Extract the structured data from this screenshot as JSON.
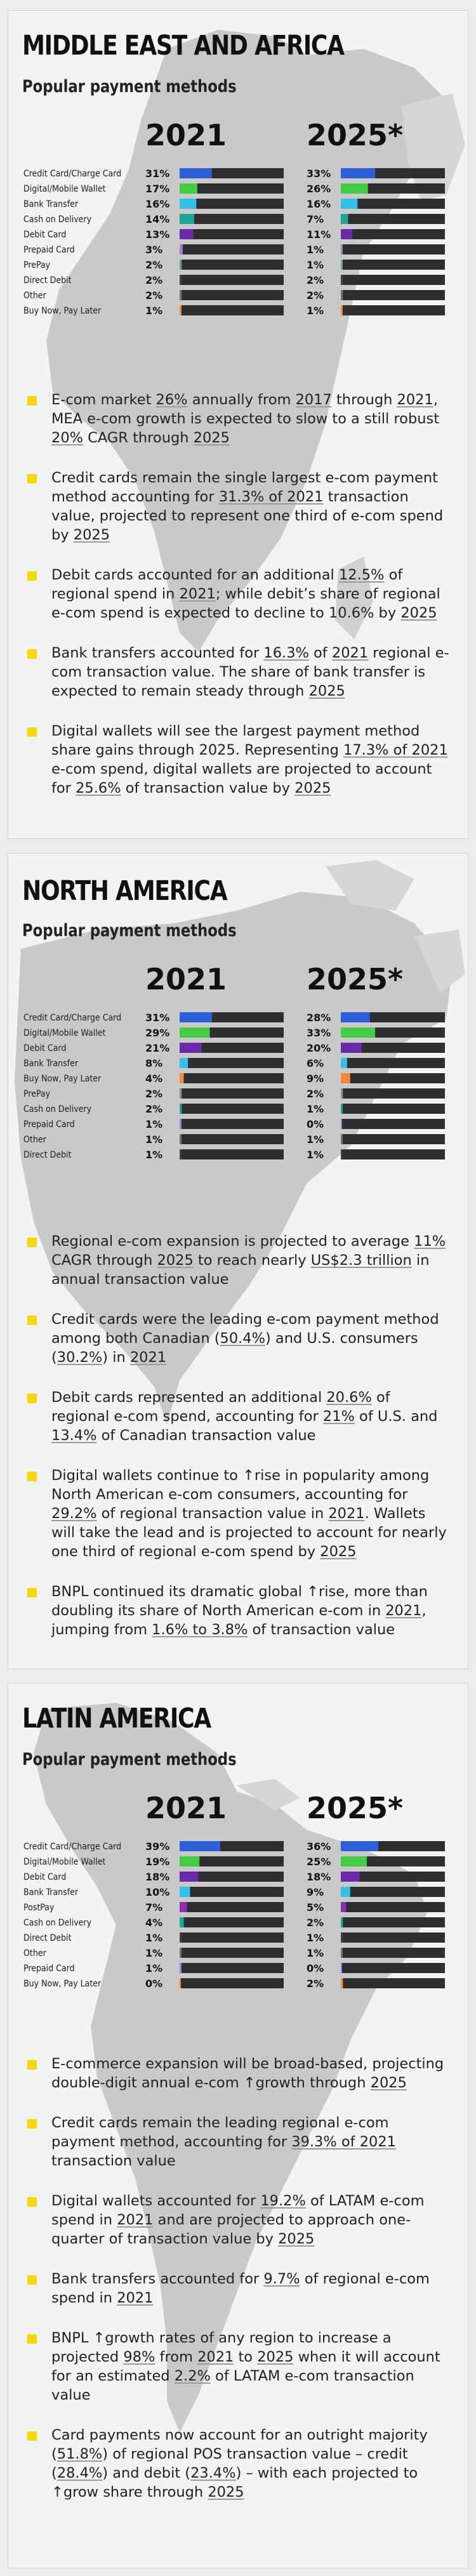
{
  "colors": {
    "credit_card": "#2f5fd6",
    "digital_wallet": "#44cc44",
    "debit_card": "#6a2aa8",
    "bank_transfer": "#35c0e8",
    "cash_on_delivery": "#1aa89a",
    "prepaid_card": "#9b7fd6",
    "prepay": "#7a9a84",
    "direct_debit": "#3a3f55",
    "other": "#707070",
    "bnpl": "#f08a3c",
    "postpay": "#8a30b0",
    "bar_track": "#2e2e2e",
    "bullet": "#f5d90f",
    "map": "#c9c9c9"
  },
  "sections": [
    {
      "title": "MIDDLE EAST AND AFRICA",
      "subtitle": "Popular payment methods",
      "chart_data": {
        "type": "bar",
        "title": "Popular payment methods",
        "categories": [
          "Credit Card/Charge Card",
          "Digital/Mobile Wallet",
          "Bank Transfer",
          "Cash on Delivery",
          "Debit Card",
          "Prepaid Card",
          "PrePay",
          "Direct Debit",
          "Other",
          "Buy Now, Pay Later"
        ],
        "color_keys": [
          "credit_card",
          "digital_wallet",
          "bank_transfer",
          "cash_on_delivery",
          "debit_card",
          "prepaid_card",
          "prepay",
          "direct_debit",
          "other",
          "bnpl"
        ],
        "series": [
          {
            "name": "2021",
            "values": [
              31,
              17,
              16,
              14,
              13,
              3,
              2,
              2,
              2,
              1
            ]
          },
          {
            "name": "2025*",
            "values": [
              33,
              26,
              16,
              7,
              11,
              1,
              1,
              2,
              2,
              1
            ]
          }
        ],
        "ylim": [
          0,
          100
        ]
      },
      "bullets": [
        [
          {
            "t": "E-com market "
          },
          {
            "t": "26%",
            "u": true
          },
          {
            "t": " annually from "
          },
          {
            "t": "2017",
            "u": true
          },
          {
            "t": " through "
          },
          {
            "t": "2021",
            "u": true
          },
          {
            "t": ", MEA e-com growth is expected to slow to a still robust "
          },
          {
            "t": "20%",
            "u": true
          },
          {
            "t": " CAGR through "
          },
          {
            "t": "2025",
            "u": true
          }
        ],
        [
          {
            "t": "Credit cards remain the single largest e-com payment method accounting for "
          },
          {
            "t": "31.3% of 2021",
            "u": true
          },
          {
            "t": " transaction value, projected to represent one third of e-com spend by "
          },
          {
            "t": "2025",
            "u": true
          }
        ],
        [
          {
            "t": "Debit cards accounted for an additional "
          },
          {
            "t": "12.5%",
            "u": true
          },
          {
            "t": " of regional spend in "
          },
          {
            "t": "2021",
            "u": true
          },
          {
            "t": "; while debit’s share of regional e-com spend is expected to decline to 10.6% by "
          },
          {
            "t": "2025",
            "u": true
          }
        ],
        [
          {
            "t": "Bank transfers accounted for "
          },
          {
            "t": "16.3%",
            "u": true
          },
          {
            "t": " of "
          },
          {
            "t": "2021",
            "u": true
          },
          {
            "t": " regional e-com transaction value. The share of bank transfer is expected to remain steady through "
          },
          {
            "t": "2025",
            "u": true
          }
        ],
        [
          {
            "t": "Digital wallets will see the largest payment method share gains through 2025. Representing "
          },
          {
            "t": "17.3% of 2021",
            "u": true
          },
          {
            "t": " e-com spend, digital wallets are projected to account for "
          },
          {
            "t": "25.6%",
            "u": true
          },
          {
            "t": " of transaction value by "
          },
          {
            "t": "2025",
            "u": true
          }
        ]
      ]
    },
    {
      "title": "NORTH AMERICA",
      "subtitle": "Popular payment methods",
      "chart_data": {
        "type": "bar",
        "title": "Popular payment methods",
        "categories": [
          "Credit Card/Charge Card",
          "Digital/Mobile Wallet",
          "Debit Card",
          "Bank Transfer",
          "Buy Now, Pay Later",
          "PrePay",
          "Cash on Delivery",
          "Prepaid Card",
          "Other",
          "Direct Debit"
        ],
        "color_keys": [
          "credit_card",
          "digital_wallet",
          "debit_card",
          "bank_transfer",
          "bnpl",
          "prepay",
          "cash_on_delivery",
          "prepaid_card",
          "other",
          "direct_debit"
        ],
        "series": [
          {
            "name": "2021",
            "values": [
              31,
              29,
              21,
              8,
              4,
              2,
              2,
              1,
              1,
              1
            ]
          },
          {
            "name": "2025*",
            "values": [
              28,
              33,
              20,
              6,
              9,
              2,
              1,
              0,
              1,
              1
            ]
          }
        ],
        "ylim": [
          0,
          100
        ]
      },
      "bullets": [
        [
          {
            "t": "Regional e-com expansion is projected to average "
          },
          {
            "t": "11%",
            "u": true
          },
          {
            "t": " CAGR through "
          },
          {
            "t": "2025",
            "u": true
          },
          {
            "t": " to reach nearly "
          },
          {
            "t": "US$2.3 trillion",
            "u": true
          },
          {
            "t": " in annual transaction value"
          }
        ],
        [
          {
            "t": "Credit cards were the leading e-com payment method among both Canadian ("
          },
          {
            "t": "50.4%",
            "u": true
          },
          {
            "t": ") and U.S. consumers ("
          },
          {
            "t": "30.2%",
            "u": true
          },
          {
            "t": ") in "
          },
          {
            "t": "2021",
            "u": true
          }
        ],
        [
          {
            "t": "Debit cards represented an additional "
          },
          {
            "t": "20.6%",
            "u": true
          },
          {
            "t": " of regional e-com spend, accounting for "
          },
          {
            "t": "21%",
            "u": true
          },
          {
            "t": " of U.S. and "
          },
          {
            "t": "13.4%",
            "u": true
          },
          {
            "t": " of Canadian transaction value"
          }
        ],
        [
          {
            "t": "Digital wallets continue to ↑rise in popularity among North American e-com consumers, accounting for "
          },
          {
            "t": "29.2%",
            "u": true
          },
          {
            "t": " of regional transaction value in "
          },
          {
            "t": "2021",
            "u": true
          },
          {
            "t": ". Wallets will take the lead and is projected to account for nearly one third of regional e-com spend by "
          },
          {
            "t": "2025",
            "u": true
          }
        ],
        [
          {
            "t": "BNPL continued its dramatic global ↑rise, more than doubling its share of North American e-com in "
          },
          {
            "t": "2021",
            "u": true
          },
          {
            "t": ", jumping from "
          },
          {
            "t": "1.6% to 3.8%",
            "u": true
          },
          {
            "t": " of transaction value"
          }
        ]
      ]
    },
    {
      "title": "LATIN AMERICA",
      "subtitle": "Popular payment methods",
      "chart_data": {
        "type": "bar",
        "title": "Popular payment methods",
        "categories": [
          "Credit Card/Charge Card",
          "Digital/Mobile Wallet",
          "Debit Card",
          "Bank Transfer",
          "PostPay",
          "Cash on Delivery",
          "Direct Debit",
          "Other",
          "Prepaid Card",
          "Buy Now, Pay Later"
        ],
        "color_keys": [
          "credit_card",
          "digital_wallet",
          "debit_card",
          "bank_transfer",
          "postpay",
          "cash_on_delivery",
          "direct_debit",
          "other",
          "prepaid_card",
          "bnpl"
        ],
        "series": [
          {
            "name": "2021",
            "values": [
              39,
              19,
              18,
              10,
              7,
              4,
              1,
              1,
              1,
              0
            ]
          },
          {
            "name": "2025*",
            "values": [
              36,
              25,
              18,
              9,
              5,
              2,
              1,
              1,
              0,
              2
            ]
          }
        ],
        "ylim": [
          0,
          100
        ]
      },
      "bullets": [
        [
          {
            "t": "E-commerce expansion will be broad-based, projecting double-digit annual e-com ↑growth through "
          },
          {
            "t": "2025",
            "u": true
          }
        ],
        [
          {
            "t": "Credit cards remain the leading regional e-com payment method, accounting for "
          },
          {
            "t": "39.3% of 2021",
            "u": true
          },
          {
            "t": " transaction value"
          }
        ],
        [
          {
            "t": "Digital wallets accounted for "
          },
          {
            "t": "19.2%",
            "u": true
          },
          {
            "t": " of LATAM e-com spend in "
          },
          {
            "t": "2021",
            "u": true
          },
          {
            "t": " and are projected to approach one-quarter of transaction value by "
          },
          {
            "t": "2025",
            "u": true
          }
        ],
        [
          {
            "t": "Bank transfers accounted for "
          },
          {
            "t": "9.7%",
            "u": true
          },
          {
            "t": " of regional e-com spend in "
          },
          {
            "t": "2021",
            "u": true
          }
        ],
        [
          {
            "t": "BNPL ↑growth rates of any region to increase a projected "
          },
          {
            "t": "98%",
            "u": true
          },
          {
            "t": " from "
          },
          {
            "t": "2021",
            "u": true
          },
          {
            "t": " to "
          },
          {
            "t": "2025",
            "u": true
          },
          {
            "t": " when it will account for an estimated "
          },
          {
            "t": "2.2%",
            "u": true
          },
          {
            "t": " of LATAM e-com transaction value"
          }
        ],
        [
          {
            "t": "Card payments now account for an outright majority ("
          },
          {
            "t": "51.8%",
            "u": true
          },
          {
            "t": ") of regional POS transaction value – credit ("
          },
          {
            "t": "28.4%",
            "u": true
          },
          {
            "t": ") and debit ("
          },
          {
            "t": "23.4%",
            "u": true
          },
          {
            "t": ") – with each projected to ↑grow share through "
          },
          {
            "t": "2025",
            "u": true
          }
        ]
      ]
    }
  ]
}
